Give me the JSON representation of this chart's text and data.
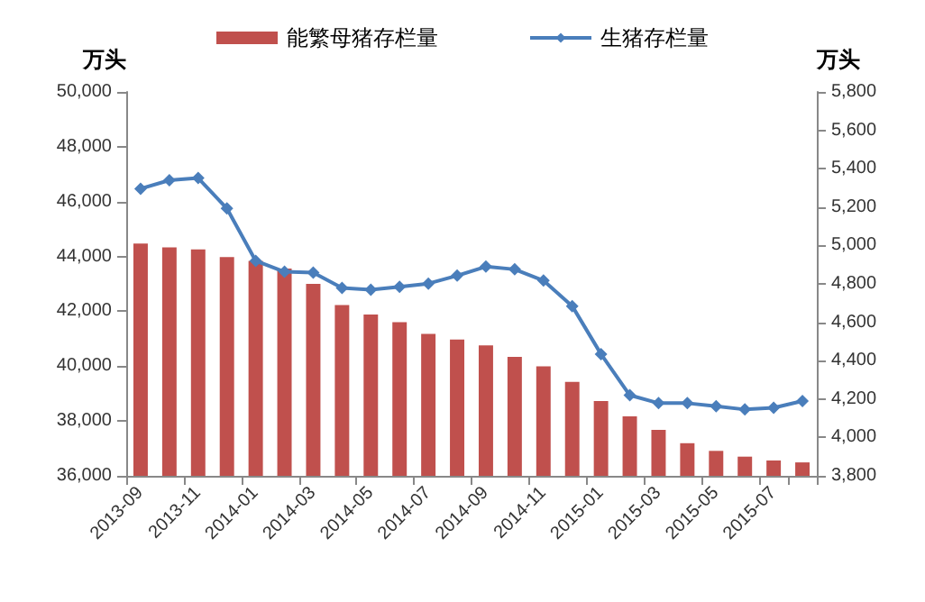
{
  "chart_data": {
    "type": "bar",
    "categories": [
      "2013-09",
      null,
      "2013-11",
      null,
      "2014-01",
      null,
      "2014-03",
      null,
      "2014-05",
      null,
      "2014-07",
      null,
      "2014-09",
      null,
      "2014-11",
      null,
      "2015-01",
      null,
      "2015-03",
      null,
      "2015-05",
      null,
      "2015-07",
      null
    ],
    "series": [
      {
        "name": "能繁母猪存栏量",
        "axis": "y2",
        "color": "#c0504d",
        "values": [
          5010,
          4990,
          4980,
          4940,
          4920,
          4880,
          4800,
          4690,
          4640,
          4600,
          4540,
          4510,
          4480,
          4420,
          4370,
          4290,
          4190,
          4110,
          4040,
          3970,
          3930,
          3900,
          3880,
          3870
        ]
      },
      {
        "name": "生猪存栏量",
        "type": "line",
        "color": "#4a7ebb",
        "values": [
          46470,
          46780,
          46860,
          45750,
          43840,
          43440,
          43410,
          42850,
          42790,
          42890,
          43010,
          43300,
          43630,
          43530,
          43120,
          42190,
          40440,
          38940,
          38650,
          38650,
          38540,
          38420,
          38480,
          38730
        ]
      }
    ],
    "ylabel": "万头",
    "y2label": "万头",
    "ylim": [
      36000,
      50000
    ],
    "yticks": [
      {
        "value": 36000,
        "label": "36,000"
      },
      {
        "value": 38000,
        "label": "38,000"
      },
      {
        "value": 40000,
        "label": "40,000"
      },
      {
        "value": 42000,
        "label": "42,000"
      },
      {
        "value": 44000,
        "label": "44,000"
      },
      {
        "value": 46000,
        "label": "46,000"
      },
      {
        "value": 48000,
        "label": "48,000"
      },
      {
        "value": 50000,
        "label": "50,000"
      }
    ],
    "y2lim": [
      3800,
      5800
    ],
    "y2ticks": [
      {
        "value": 3800,
        "label": "3,800"
      },
      {
        "value": 4000,
        "label": "4,000"
      },
      {
        "value": 4200,
        "label": "4,200"
      },
      {
        "value": 4400,
        "label": "4,400"
      },
      {
        "value": 4600,
        "label": "4,600"
      },
      {
        "value": 4800,
        "label": "4,800"
      },
      {
        "value": 5000,
        "label": "5,000"
      },
      {
        "value": 5200,
        "label": "5,200"
      },
      {
        "value": 5400,
        "label": "5,400"
      },
      {
        "value": 5600,
        "label": "5,600"
      },
      {
        "value": 5800,
        "label": "5,800"
      }
    ],
    "legend": "top",
    "marker": "diamond",
    "grid": false
  }
}
